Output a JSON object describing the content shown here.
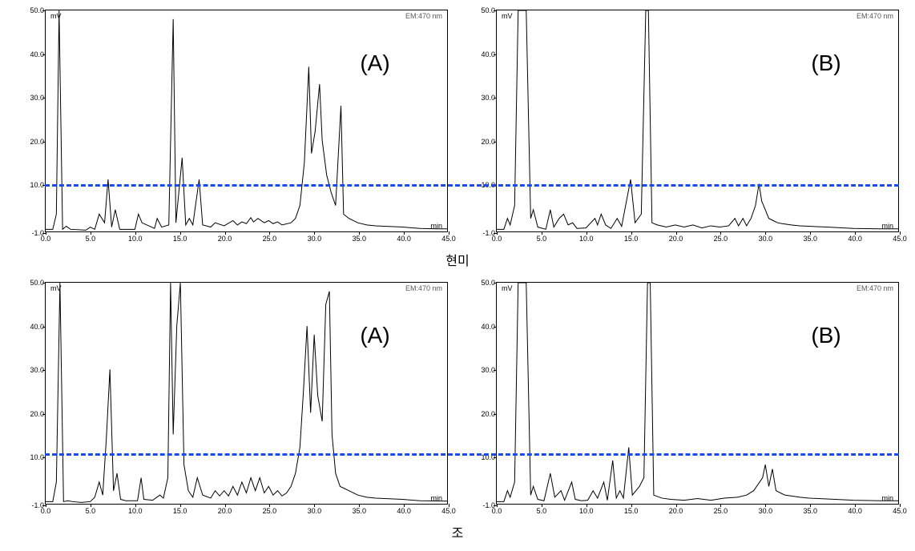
{
  "layout": {
    "caption_top": "현미",
    "caption_bottom": "조",
    "panel_label_font_size": 28,
    "dashed_color": "#1a4ce0",
    "dashed_width": 3
  },
  "charts": [
    {
      "id": "top-left",
      "row": 0,
      "col": 0,
      "panel_label": "(A)",
      "corner_label_right": "EM:470 nm",
      "unit_y": "mV",
      "unit_x": "min",
      "y_min": -1.0,
      "y_max": 50.0,
      "x_min": 0.0,
      "x_max": 45.0,
      "y_ticks": [
        -1.0,
        10.0,
        20.0,
        30.0,
        40.0,
        50.0
      ],
      "x_ticks": [
        0.0,
        5.0,
        10.0,
        15.0,
        20.0,
        25.0,
        30.0,
        35.0,
        40.0,
        45.0
      ],
      "dashed_y": 10.0,
      "trace": [
        [
          0.0,
          -0.5
        ],
        [
          0.8,
          -0.5
        ],
        [
          1.2,
          3
        ],
        [
          1.5,
          50
        ],
        [
          1.9,
          -0.5
        ],
        [
          2.3,
          0.2
        ],
        [
          2.8,
          -0.5
        ],
        [
          4.5,
          -0.7
        ],
        [
          5.0,
          0.0
        ],
        [
          5.5,
          -0.5
        ],
        [
          6.0,
          3
        ],
        [
          6.6,
          1
        ],
        [
          7.0,
          11
        ],
        [
          7.4,
          0
        ],
        [
          7.8,
          4
        ],
        [
          8.3,
          -0.5
        ],
        [
          9.0,
          -0.5
        ],
        [
          10.0,
          -0.5
        ],
        [
          10.4,
          3
        ],
        [
          10.8,
          1
        ],
        [
          12.2,
          -0.3
        ],
        [
          12.5,
          2
        ],
        [
          13.0,
          0
        ],
        [
          13.8,
          0.5
        ],
        [
          14.3,
          48
        ],
        [
          14.6,
          1
        ],
        [
          15.3,
          16
        ],
        [
          15.7,
          0.5
        ],
        [
          16.1,
          2
        ],
        [
          16.5,
          0.5
        ],
        [
          17.2,
          11
        ],
        [
          17.6,
          0.5
        ],
        [
          18.5,
          0
        ],
        [
          19.0,
          1
        ],
        [
          20.0,
          0.3
        ],
        [
          21.0,
          1.5
        ],
        [
          21.5,
          0.5
        ],
        [
          22.0,
          1.2
        ],
        [
          22.5,
          0.8
        ],
        [
          23.0,
          2.2
        ],
        [
          23.3,
          1.2
        ],
        [
          23.8,
          2.0
        ],
        [
          24.5,
          1.0
        ],
        [
          25.0,
          1.5
        ],
        [
          25.5,
          0.8
        ],
        [
          26.0,
          1.2
        ],
        [
          26.5,
          0.5
        ],
        [
          27.5,
          1
        ],
        [
          28.0,
          2
        ],
        [
          28.5,
          5
        ],
        [
          29.0,
          15
        ],
        [
          29.5,
          37
        ],
        [
          29.8,
          17
        ],
        [
          30.2,
          22
        ],
        [
          30.7,
          33
        ],
        [
          31.0,
          20
        ],
        [
          31.5,
          12
        ],
        [
          32.0,
          8
        ],
        [
          32.5,
          5
        ],
        [
          33.1,
          28
        ],
        [
          33.4,
          3
        ],
        [
          34.0,
          2
        ],
        [
          35.0,
          1
        ],
        [
          36.0,
          0.5
        ],
        [
          37.0,
          0.3
        ],
        [
          38.0,
          0.2
        ],
        [
          40.0,
          0
        ],
        [
          42.0,
          -0.3
        ],
        [
          44.0,
          -0.4
        ],
        [
          45.0,
          -0.4
        ]
      ]
    },
    {
      "id": "top-right",
      "row": 0,
      "col": 1,
      "panel_label": "(B)",
      "corner_label_right": "EM:470 nm",
      "unit_y": "mV",
      "unit_x": "min",
      "y_min": -1.0,
      "y_max": 50.0,
      "x_min": 0.0,
      "x_max": 45.0,
      "y_ticks": [
        -1.0,
        10.0,
        20.0,
        30.0,
        40.0,
        50.0
      ],
      "x_ticks": [
        0.0,
        5.0,
        10.0,
        15.0,
        20.0,
        25.0,
        30.0,
        35.0,
        40.0,
        45.0
      ],
      "dashed_y": 10.0,
      "trace": [
        [
          0.0,
          -0.5
        ],
        [
          0.8,
          -0.5
        ],
        [
          1.2,
          2
        ],
        [
          1.5,
          0.5
        ],
        [
          2.0,
          5
        ],
        [
          2.4,
          50
        ],
        [
          2.6,
          50
        ],
        [
          3.0,
          50
        ],
        [
          3.3,
          50
        ],
        [
          3.8,
          2
        ],
        [
          4.1,
          4
        ],
        [
          4.6,
          0
        ],
        [
          5.5,
          -0.5
        ],
        [
          6.0,
          4
        ],
        [
          6.4,
          0
        ],
        [
          7.0,
          2
        ],
        [
          7.5,
          3
        ],
        [
          8.0,
          0.5
        ],
        [
          8.5,
          1
        ],
        [
          9.0,
          -0.3
        ],
        [
          10.0,
          -0.2
        ],
        [
          11.0,
          2
        ],
        [
          11.3,
          0.5
        ],
        [
          11.7,
          3
        ],
        [
          12.2,
          0.5
        ],
        [
          12.8,
          -0.3
        ],
        [
          13.5,
          2
        ],
        [
          14.0,
          0.2
        ],
        [
          15.0,
          11
        ],
        [
          15.5,
          1
        ],
        [
          16.2,
          3
        ],
        [
          16.7,
          50
        ],
        [
          17.0,
          50
        ],
        [
          17.4,
          1
        ],
        [
          18.0,
          0.5
        ],
        [
          19.0,
          0
        ],
        [
          20.0,
          0.5
        ],
        [
          21.0,
          0
        ],
        [
          22.0,
          0.5
        ],
        [
          23.0,
          -0.2
        ],
        [
          24.0,
          0.3
        ],
        [
          25.0,
          0
        ],
        [
          26.0,
          0.3
        ],
        [
          26.7,
          2
        ],
        [
          27.1,
          0.3
        ],
        [
          27.6,
          2
        ],
        [
          28.0,
          0.3
        ],
        [
          28.5,
          2
        ],
        [
          29.0,
          5
        ],
        [
          29.4,
          10
        ],
        [
          29.7,
          6
        ],
        [
          30.1,
          4
        ],
        [
          30.5,
          2
        ],
        [
          31.0,
          1.5
        ],
        [
          31.5,
          1
        ],
        [
          32.0,
          0.8
        ],
        [
          33.0,
          0.5
        ],
        [
          34.0,
          0.3
        ],
        [
          35.0,
          0.2
        ],
        [
          37.0,
          0
        ],
        [
          40.0,
          -0.3
        ],
        [
          43.0,
          -0.4
        ],
        [
          45.0,
          -0.4
        ]
      ]
    },
    {
      "id": "bot-left",
      "row": 2,
      "col": 0,
      "panel_label": "(A)",
      "corner_label_right": "EM:470 nm",
      "unit_y": "mV",
      "unit_x": "min",
      "y_min": -1.0,
      "y_max": 50.0,
      "x_min": 0.0,
      "x_max": 45.0,
      "y_ticks": [
        -1.0,
        10.0,
        20.0,
        30.0,
        40.0,
        50.0
      ],
      "x_ticks": [
        0.0,
        5.0,
        10.0,
        15.0,
        20.0,
        25.0,
        30.0,
        35.0,
        40.0,
        45.0
      ],
      "dashed_y": 10.5,
      "trace": [
        [
          0.0,
          -0.5
        ],
        [
          0.8,
          -0.5
        ],
        [
          1.2,
          4
        ],
        [
          1.6,
          50
        ],
        [
          2.0,
          -0.5
        ],
        [
          2.5,
          -0.3
        ],
        [
          3.0,
          -0.5
        ],
        [
          4.0,
          -0.7
        ],
        [
          5.0,
          -0.5
        ],
        [
          5.5,
          0.5
        ],
        [
          6.0,
          4
        ],
        [
          6.4,
          1
        ],
        [
          6.8,
          14
        ],
        [
          7.2,
          30
        ],
        [
          7.6,
          2
        ],
        [
          8.0,
          6
        ],
        [
          8.4,
          0
        ],
        [
          9.0,
          -0.3
        ],
        [
          10.3,
          -0.3
        ],
        [
          10.7,
          5
        ],
        [
          11.0,
          0
        ],
        [
          12.0,
          -0.2
        ],
        [
          12.8,
          1
        ],
        [
          13.2,
          0.3
        ],
        [
          13.7,
          5
        ],
        [
          14.0,
          50
        ],
        [
          14.3,
          15
        ],
        [
          14.7,
          40
        ],
        [
          15.1,
          50
        ],
        [
          15.5,
          8
        ],
        [
          16.0,
          2
        ],
        [
          16.5,
          0.5
        ],
        [
          17.0,
          5
        ],
        [
          17.6,
          1
        ],
        [
          18.5,
          0.3
        ],
        [
          19.0,
          2
        ],
        [
          19.5,
          0.8
        ],
        [
          20.0,
          2
        ],
        [
          20.5,
          0.8
        ],
        [
          21.0,
          3
        ],
        [
          21.5,
          1
        ],
        [
          22.0,
          4
        ],
        [
          22.5,
          1.5
        ],
        [
          23.0,
          5
        ],
        [
          23.5,
          2
        ],
        [
          24.0,
          5
        ],
        [
          24.5,
          1.5
        ],
        [
          25.0,
          3
        ],
        [
          25.5,
          1
        ],
        [
          26.0,
          2
        ],
        [
          26.5,
          0.8
        ],
        [
          27.0,
          1.5
        ],
        [
          27.5,
          3
        ],
        [
          28.0,
          6
        ],
        [
          28.5,
          12
        ],
        [
          28.9,
          25
        ],
        [
          29.3,
          40
        ],
        [
          29.7,
          20
        ],
        [
          30.1,
          38
        ],
        [
          30.5,
          24
        ],
        [
          31.0,
          18
        ],
        [
          31.4,
          45
        ],
        [
          31.8,
          48
        ],
        [
          32.1,
          15
        ],
        [
          32.5,
          6
        ],
        [
          33.0,
          3
        ],
        [
          34.0,
          2
        ],
        [
          35.0,
          1
        ],
        [
          36.0,
          0.5
        ],
        [
          37.0,
          0.3
        ],
        [
          40.0,
          0
        ],
        [
          42.0,
          -0.3
        ],
        [
          45.0,
          -0.4
        ]
      ]
    },
    {
      "id": "bot-right",
      "row": 2,
      "col": 1,
      "panel_label": "(B)",
      "corner_label_right": "EM:470 nm",
      "unit_y": "mV",
      "unit_x": "min",
      "y_min": -1.0,
      "y_max": 50.0,
      "x_min": 0.0,
      "x_max": 45.0,
      "y_ticks": [
        -1.0,
        10.0,
        20.0,
        30.0,
        40.0,
        50.0
      ],
      "x_ticks": [
        0.0,
        5.0,
        10.0,
        15.0,
        20.0,
        25.0,
        30.0,
        35.0,
        40.0,
        45.0
      ],
      "dashed_y": 11.0,
      "trace": [
        [
          0.0,
          -0.5
        ],
        [
          0.8,
          -0.5
        ],
        [
          1.2,
          2
        ],
        [
          1.5,
          0.5
        ],
        [
          2.0,
          4
        ],
        [
          2.4,
          50
        ],
        [
          2.6,
          50
        ],
        [
          3.0,
          50
        ],
        [
          3.3,
          50
        ],
        [
          3.8,
          1
        ],
        [
          4.1,
          3
        ],
        [
          4.6,
          0
        ],
        [
          5.3,
          -0.3
        ],
        [
          6.0,
          6
        ],
        [
          6.5,
          0.5
        ],
        [
          7.2,
          2
        ],
        [
          7.6,
          -0.2
        ],
        [
          8.4,
          4
        ],
        [
          8.8,
          0
        ],
        [
          9.5,
          -0.3
        ],
        [
          10.2,
          -0.2
        ],
        [
          10.8,
          2
        ],
        [
          11.3,
          0.3
        ],
        [
          12.0,
          4
        ],
        [
          12.4,
          -0.2
        ],
        [
          13.0,
          9
        ],
        [
          13.4,
          0.3
        ],
        [
          13.8,
          2
        ],
        [
          14.2,
          0.3
        ],
        [
          14.8,
          12
        ],
        [
          15.2,
          1
        ],
        [
          16.0,
          3
        ],
        [
          16.5,
          5
        ],
        [
          16.9,
          50
        ],
        [
          17.2,
          50
        ],
        [
          17.6,
          1
        ],
        [
          18.5,
          0.3
        ],
        [
          19.5,
          0
        ],
        [
          21.0,
          -0.2
        ],
        [
          22.5,
          0.2
        ],
        [
          24.0,
          -0.2
        ],
        [
          25.5,
          0.3
        ],
        [
          27.0,
          0.5
        ],
        [
          28.0,
          1
        ],
        [
          28.8,
          2
        ],
        [
          29.3,
          3.5
        ],
        [
          29.8,
          5
        ],
        [
          30.1,
          8
        ],
        [
          30.5,
          3
        ],
        [
          30.9,
          7
        ],
        [
          31.3,
          2
        ],
        [
          31.8,
          1.5
        ],
        [
          32.3,
          1
        ],
        [
          33.0,
          0.8
        ],
        [
          34.0,
          0.5
        ],
        [
          35.0,
          0.3
        ],
        [
          37.0,
          0.1
        ],
        [
          40.0,
          -0.2
        ],
        [
          43.0,
          -0.3
        ],
        [
          45.0,
          -0.3
        ]
      ]
    }
  ]
}
